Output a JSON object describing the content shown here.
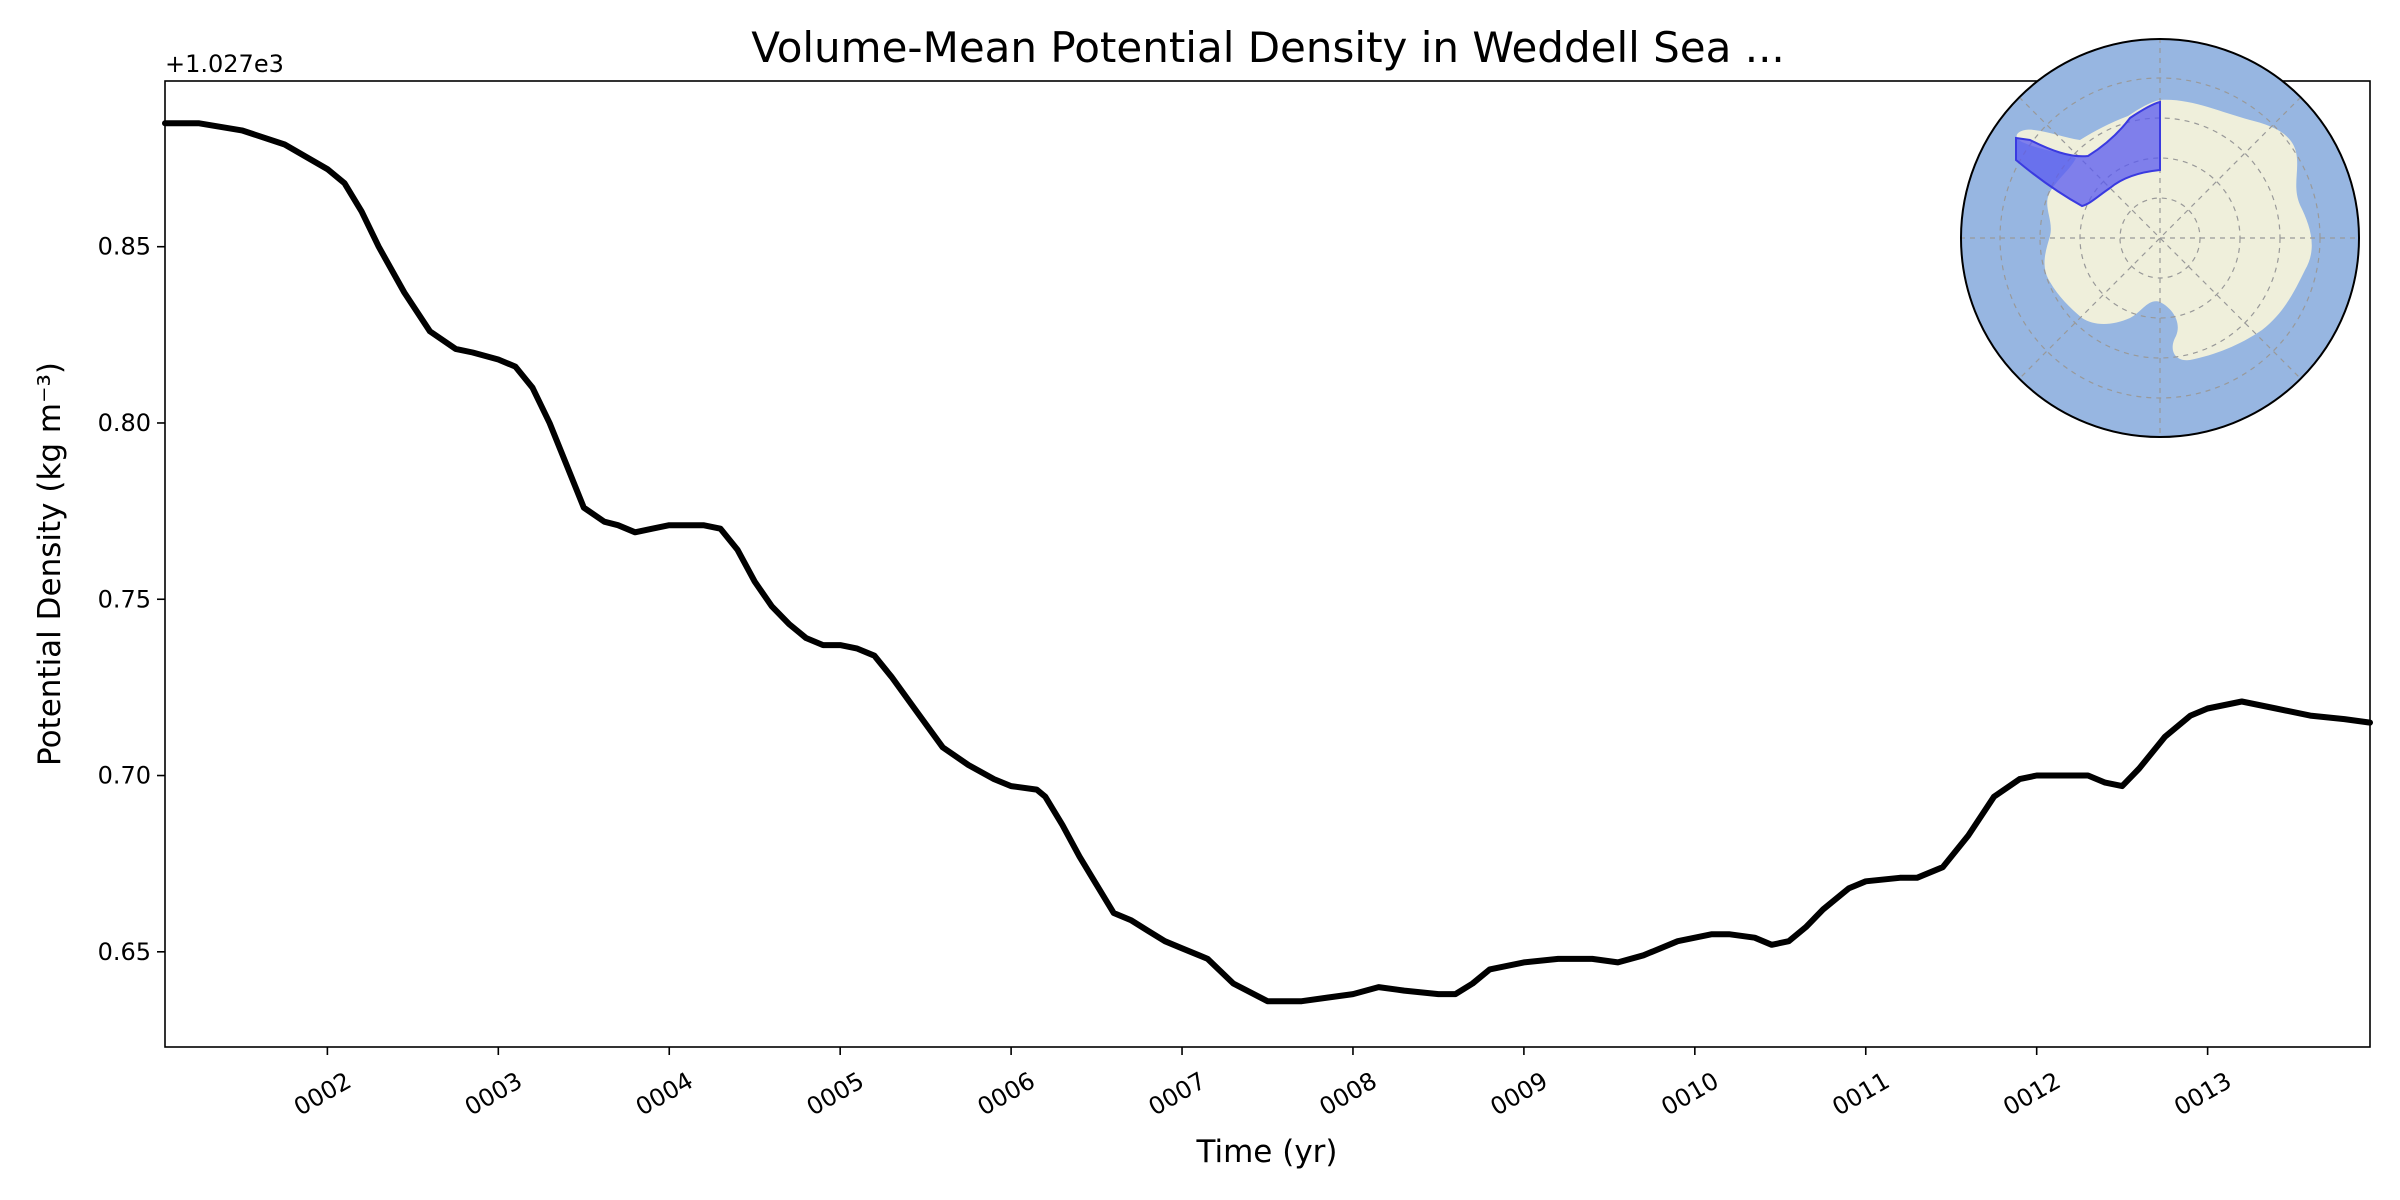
{
  "chart_data": {
    "type": "line",
    "title": "Volume-Mean Potential Density in Weddell Sea ...",
    "offset_text": "+1.027e3",
    "xlabel": "Time (yr)",
    "ylabel": "Potential Density (kg m⁻³)",
    "xlim": [
      1.05,
      13.95
    ],
    "ylim": [
      0.623,
      0.897
    ],
    "x_ticks": [
      2,
      3,
      4,
      5,
      6,
      7,
      8,
      9,
      10,
      11,
      12,
      13
    ],
    "x_tick_labels": [
      "0002",
      "0003",
      "0004",
      "0005",
      "0006",
      "0007",
      "0008",
      "0009",
      "0010",
      "0011",
      "0012",
      "0013"
    ],
    "y_ticks": [
      0.65,
      0.7,
      0.75,
      0.8,
      0.85
    ],
    "y_tick_labels": [
      "0.65",
      "0.70",
      "0.75",
      "0.80",
      "0.85"
    ],
    "series": [
      {
        "color": "#000000",
        "x": [
          1.05,
          1.25,
          1.5,
          1.75,
          2.0,
          2.1,
          2.2,
          2.3,
          2.45,
          2.6,
          2.75,
          2.85,
          3.0,
          3.1,
          3.2,
          3.3,
          3.4,
          3.5,
          3.62,
          3.7,
          3.8,
          3.9,
          4.0,
          4.1,
          4.2,
          4.3,
          4.4,
          4.5,
          4.6,
          4.7,
          4.8,
          4.9,
          5.0,
          5.1,
          5.2,
          5.3,
          5.45,
          5.6,
          5.75,
          5.9,
          6.0,
          6.15,
          6.2,
          6.3,
          6.4,
          6.5,
          6.6,
          6.7,
          6.8,
          6.9,
          7.0,
          7.1,
          7.15,
          7.3,
          7.5,
          7.7,
          7.85,
          8.0,
          8.15,
          8.3,
          8.5,
          8.6,
          8.7,
          8.8,
          9.0,
          9.2,
          9.4,
          9.55,
          9.7,
          9.9,
          10.0,
          10.1,
          10.2,
          10.35,
          10.45,
          10.55,
          10.65,
          10.75,
          10.9,
          11.0,
          11.2,
          11.3,
          11.45,
          11.6,
          11.75,
          11.9,
          12.0,
          12.2,
          12.3,
          12.4,
          12.5,
          12.6,
          12.75,
          12.9,
          13.0,
          13.1,
          13.2,
          13.3,
          13.4,
          13.6,
          13.8,
          13.95
        ],
        "y": [
          0.885,
          0.885,
          0.883,
          0.879,
          0.872,
          0.868,
          0.86,
          0.85,
          0.837,
          0.826,
          0.821,
          0.82,
          0.818,
          0.816,
          0.81,
          0.8,
          0.788,
          0.776,
          0.772,
          0.771,
          0.769,
          0.77,
          0.771,
          0.771,
          0.771,
          0.77,
          0.764,
          0.755,
          0.748,
          0.743,
          0.739,
          0.737,
          0.737,
          0.736,
          0.734,
          0.728,
          0.718,
          0.708,
          0.703,
          0.699,
          0.697,
          0.696,
          0.694,
          0.686,
          0.677,
          0.669,
          0.661,
          0.659,
          0.656,
          0.653,
          0.651,
          0.649,
          0.648,
          0.641,
          0.636,
          0.636,
          0.637,
          0.638,
          0.64,
          0.639,
          0.638,
          0.638,
          0.641,
          0.645,
          0.647,
          0.648,
          0.648,
          0.647,
          0.649,
          0.653,
          0.654,
          0.655,
          0.655,
          0.654,
          0.652,
          0.653,
          0.657,
          0.662,
          0.668,
          0.67,
          0.671,
          0.671,
          0.674,
          0.683,
          0.694,
          0.699,
          0.7,
          0.7,
          0.7,
          0.698,
          0.697,
          0.702,
          0.711,
          0.717,
          0.719,
          0.72,
          0.721,
          0.72,
          0.719,
          0.717,
          0.716,
          0.715
        ]
      }
    ],
    "grid": false,
    "legend": "none",
    "inset_map": {
      "placement": "top-right",
      "ocean_color": "#97b6e1",
      "land_color": "#efefdb",
      "region_color": "#5a5af0",
      "gridline_color": "#999999"
    }
  }
}
